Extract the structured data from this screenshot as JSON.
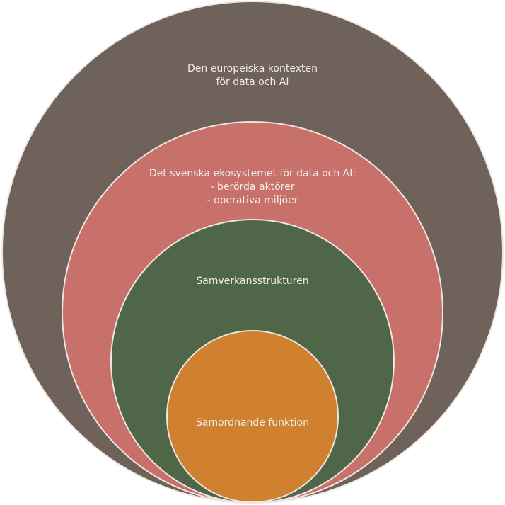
{
  "colors": {
    "outer": "#6e625a",
    "second": "#c8706a",
    "third": "#4f6649",
    "inner": "#d08130",
    "stroke": "#efe6df",
    "text": "#f4ece6"
  },
  "circles": [
    {
      "id": "european-context",
      "lines": [
        "Den europeiska kontexten",
        "för data och AI"
      ]
    },
    {
      "id": "swedish-ecosystem",
      "lines": [
        "Det svenska ekosystemet för data och AI:",
        "- berörda aktörer",
        "- operativa miljöer"
      ]
    },
    {
      "id": "collaboration-structure",
      "lines": [
        "Samverkansstrukturen"
      ]
    },
    {
      "id": "coordinating-function",
      "lines": [
        "Samordnande funktion"
      ]
    }
  ]
}
